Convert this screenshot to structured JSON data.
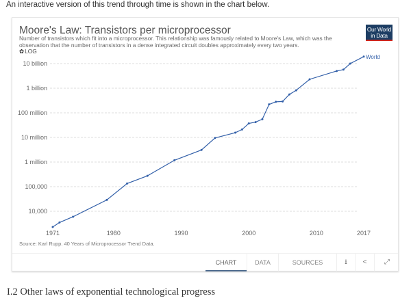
{
  "page": {
    "intro_text": "An interactive version of this trend through time is shown in the chart below.",
    "section_heading": "I.2 Other laws of exponential technological progress"
  },
  "card": {
    "title": "Moore's Law: Transistors per microprocessor",
    "subtitle": "Number of transistors which fit into a microprocessor. This relationship was famously related to Moore's Law, which was the observation that the number of transistors in a dense integrated circuit doubles approximately every two years.",
    "logo_line1": "Our World",
    "logo_line2": "in Data",
    "log_toggle_icon": "gear-icon",
    "log_toggle_label": "LOG",
    "source": "Source: Karl Rupp. 40 Years of Microprocessor Trend Data.",
    "colors": {
      "line": "#3360a9",
      "logo_bg": "#1d3d63",
      "logo_accent": "#ce261e",
      "active_tab": "#4e6b8f"
    },
    "footer": {
      "tabs": [
        {
          "label": "CHART",
          "active": true
        },
        {
          "label": "DATA",
          "active": false
        },
        {
          "label": "SOURCES",
          "active": false
        }
      ],
      "icons": [
        {
          "name": "download-icon",
          "glyph": "⭳"
        },
        {
          "name": "share-icon",
          "glyph": "<"
        },
        {
          "name": "expand-icon",
          "glyph": "⤢"
        }
      ]
    }
  },
  "chart_data": {
    "type": "line",
    "title": "Moore's Law: Transistors per microprocessor",
    "xlabel": "",
    "ylabel": "",
    "yscale": "log",
    "xlim": [
      1971,
      2017
    ],
    "ylim": [
      2000,
      20000000000
    ],
    "grid": true,
    "x_ticks": [
      1971,
      1980,
      1990,
      2000,
      2010,
      2017
    ],
    "y_ticks": [
      {
        "value": 10000,
        "label": "10,000"
      },
      {
        "value": 100000,
        "label": "100,000"
      },
      {
        "value": 1000000,
        "label": "1 million"
      },
      {
        "value": 10000000,
        "label": "10 million"
      },
      {
        "value": 100000000,
        "label": "100 million"
      },
      {
        "value": 1000000000,
        "label": "1 billion"
      },
      {
        "value": 10000000000,
        "label": "10 billion"
      }
    ],
    "series": [
      {
        "name": "World",
        "x": [
          1971,
          1972,
          1974,
          1979,
          1982,
          1985,
          1989,
          1993,
          1995,
          1998,
          1999,
          2000,
          2001,
          2002,
          2003,
          2004,
          2005,
          2006,
          2007,
          2009,
          2013,
          2014,
          2015,
          2017
        ],
        "values": [
          2300,
          3500,
          6000,
          29000,
          134000,
          275000,
          1180000,
          3100000,
          9500000,
          15600000,
          21000000,
          37000000,
          42000000,
          55000000,
          220000000,
          280000000,
          290000000,
          560000000,
          820000000,
          2300000000,
          5000000000,
          5700000000,
          10000000000,
          19200000000
        ]
      }
    ],
    "legend": "end-of-line label"
  }
}
